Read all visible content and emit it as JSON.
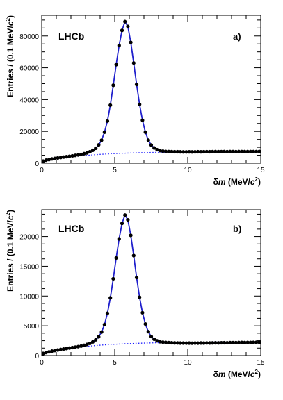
{
  "chart_data": [
    {
      "type": "scatter",
      "panel_label": "a)",
      "experiment_label": "LHCb",
      "xlabel_prefix": "δ",
      "xlabel_var": "m",
      "xlabel_unit": " (MeV/",
      "xlabel_c": "c",
      "xlabel_exp": "2",
      "xlabel_close": ")",
      "ylabel_main": "Entries / (0.1 MeV/",
      "ylabel_c": "c",
      "ylabel_exp": "2",
      "ylabel_close": ")",
      "xlim": [
        0,
        15
      ],
      "ylim": [
        0,
        93000
      ],
      "xticks": [
        0,
        5,
        10,
        15
      ],
      "xtick_labels": [
        "0",
        "5",
        "10",
        "15"
      ],
      "yticks": [
        0,
        20000,
        40000,
        60000,
        80000
      ],
      "ytick_labels": [
        "0",
        "20000",
        "40000",
        "60000",
        "80000"
      ],
      "peak": 5.85,
      "amplitude": 81000,
      "width_left": 0.55,
      "width_right": 0.6,
      "background_start": 1000,
      "background_end": 7300,
      "points_x": [
        0.1,
        0.3,
        0.5,
        0.7,
        0.9,
        1.1,
        1.3,
        1.5,
        1.7,
        1.9,
        2.1,
        2.3,
        2.5,
        2.7,
        2.9,
        3.1,
        3.3,
        3.5,
        3.7,
        3.9,
        4.1,
        4.3,
        4.5,
        4.7,
        4.9,
        5.1,
        5.3,
        5.5,
        5.7,
        5.9,
        6.1,
        6.3,
        6.5,
        6.7,
        6.9,
        7.1,
        7.3,
        7.5,
        7.7,
        7.9,
        8.1,
        8.3,
        8.5,
        8.7,
        8.9,
        9.1,
        9.3,
        9.5,
        9.7,
        9.9,
        10.1,
        10.3,
        10.5,
        10.7,
        10.9,
        11.1,
        11.3,
        11.5,
        11.7,
        11.9,
        12.1,
        12.3,
        12.5,
        12.7,
        12.9,
        13.1,
        13.3,
        13.5,
        13.7,
        13.9,
        14.1,
        14.3,
        14.5,
        14.7,
        14.9
      ],
      "points_y": [
        1300,
        1900,
        2300,
        2700,
        3000,
        3300,
        3600,
        3850,
        4100,
        4350,
        4600,
        4900,
        5200,
        5550,
        6000,
        6500,
        7200,
        8100,
        9400,
        11500,
        14500,
        19500,
        26500,
        36500,
        49000,
        62000,
        74000,
        83500,
        89000,
        86000,
        76000,
        63000,
        49500,
        37000,
        27000,
        19500,
        14500,
        11400,
        9600,
        8500,
        7900,
        7600,
        7400,
        7300,
        7250,
        7200,
        7200,
        7150,
        7100,
        7100,
        7150,
        7100,
        7150,
        7200,
        7150,
        7200,
        7250,
        7200,
        7250,
        7300,
        7250,
        7250,
        7300,
        7250,
        7300,
        7300,
        7250,
        7300,
        7350,
        7300,
        7300,
        7350,
        7300,
        7350,
        7400
      ]
    },
    {
      "type": "scatter",
      "panel_label": "b)",
      "experiment_label": "LHCb",
      "xlabel_prefix": "δ",
      "xlabel_var": "m",
      "xlabel_unit": " (MeV/",
      "xlabel_c": "c",
      "xlabel_exp": "2",
      "xlabel_close": ")",
      "ylabel_main": "Entries / (0.1 MeV/",
      "ylabel_c": "c",
      "ylabel_exp": "2",
      "ylabel_close": ")",
      "xlim": [
        0,
        15
      ],
      "ylim": [
        0,
        24500
      ],
      "xticks": [
        0,
        5,
        10,
        15
      ],
      "xtick_labels": [
        "0",
        "5",
        "10",
        "15"
      ],
      "yticks": [
        0,
        5000,
        10000,
        15000,
        20000
      ],
      "ytick_labels": [
        "0",
        "5000",
        "10000",
        "15000",
        "20000"
      ],
      "peak": 5.85,
      "amplitude": 21400,
      "width_left": 0.55,
      "width_right": 0.6,
      "background_start": 300,
      "background_end": 2300,
      "points_x": [
        0.1,
        0.3,
        0.5,
        0.7,
        0.9,
        1.1,
        1.3,
        1.5,
        1.7,
        1.9,
        2.1,
        2.3,
        2.5,
        2.7,
        2.9,
        3.1,
        3.3,
        3.5,
        3.7,
        3.9,
        4.1,
        4.3,
        4.5,
        4.7,
        4.9,
        5.1,
        5.3,
        5.5,
        5.7,
        5.9,
        6.1,
        6.3,
        6.5,
        6.7,
        6.9,
        7.1,
        7.3,
        7.5,
        7.7,
        7.9,
        8.1,
        8.3,
        8.5,
        8.7,
        8.9,
        9.1,
        9.3,
        9.5,
        9.7,
        9.9,
        10.1,
        10.3,
        10.5,
        10.7,
        10.9,
        11.1,
        11.3,
        11.5,
        11.7,
        11.9,
        12.1,
        12.3,
        12.5,
        12.7,
        12.9,
        13.1,
        13.3,
        13.5,
        13.7,
        13.9,
        14.1,
        14.3,
        14.5,
        14.7,
        14.9
      ],
      "points_y": [
        350,
        500,
        620,
        740,
        840,
        930,
        1020,
        1100,
        1180,
        1260,
        1340,
        1420,
        1500,
        1600,
        1720,
        1870,
        2050,
        2300,
        2650,
        3150,
        3950,
        5200,
        7100,
        9700,
        12900,
        16400,
        19600,
        22200,
        23600,
        22800,
        20200,
        16800,
        13100,
        9800,
        7200,
        5300,
        4000,
        3200,
        2750,
        2480,
        2330,
        2250,
        2200,
        2170,
        2150,
        2130,
        2120,
        2100,
        2100,
        2090,
        2100,
        2080,
        2100,
        2090,
        2110,
        2100,
        2120,
        2110,
        2130,
        2140,
        2130,
        2150,
        2160,
        2150,
        2170,
        2180,
        2170,
        2190,
        2200,
        2190,
        2210,
        2200,
        2220,
        2230,
        2240
      ]
    }
  ]
}
